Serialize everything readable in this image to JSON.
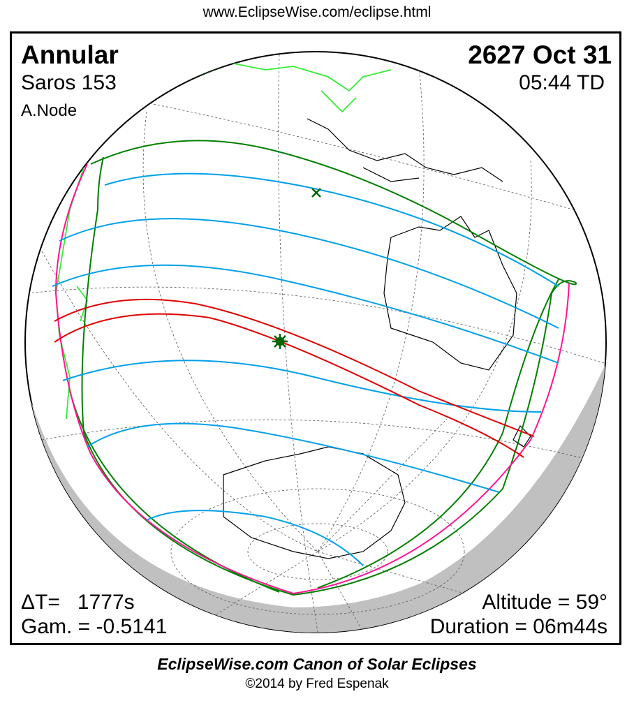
{
  "url": "www.EclipseWise.com/eclipse.html",
  "eclipse": {
    "type": "Annular",
    "saros": "Saros 153",
    "node": "A.Node",
    "date": "2627 Oct 31",
    "time": "05:44 TD"
  },
  "stats": {
    "delta_t": "ΔT=   1777s",
    "gamma": "Gam. = -0.5141",
    "altitude": "Altitude = 59°",
    "duration": "Duration = 06m44s"
  },
  "footer": {
    "title": "EclipseWise.com Canon of Solar Eclipses",
    "copyright": "©2014 by Fred Espenak"
  },
  "colors": {
    "penumbral_limits": "#008000",
    "central_path": "#e00000",
    "magnitude_lines": "#00a0e8",
    "rise_set_curves": "#ff1493",
    "land_outline": "#000000",
    "land_highlight": "#33ee33",
    "night_shading": "#c0c0c0"
  },
  "markers": {
    "greatest_eclipse": "star-icon",
    "subsolar_point": "x-mark-icon"
  }
}
